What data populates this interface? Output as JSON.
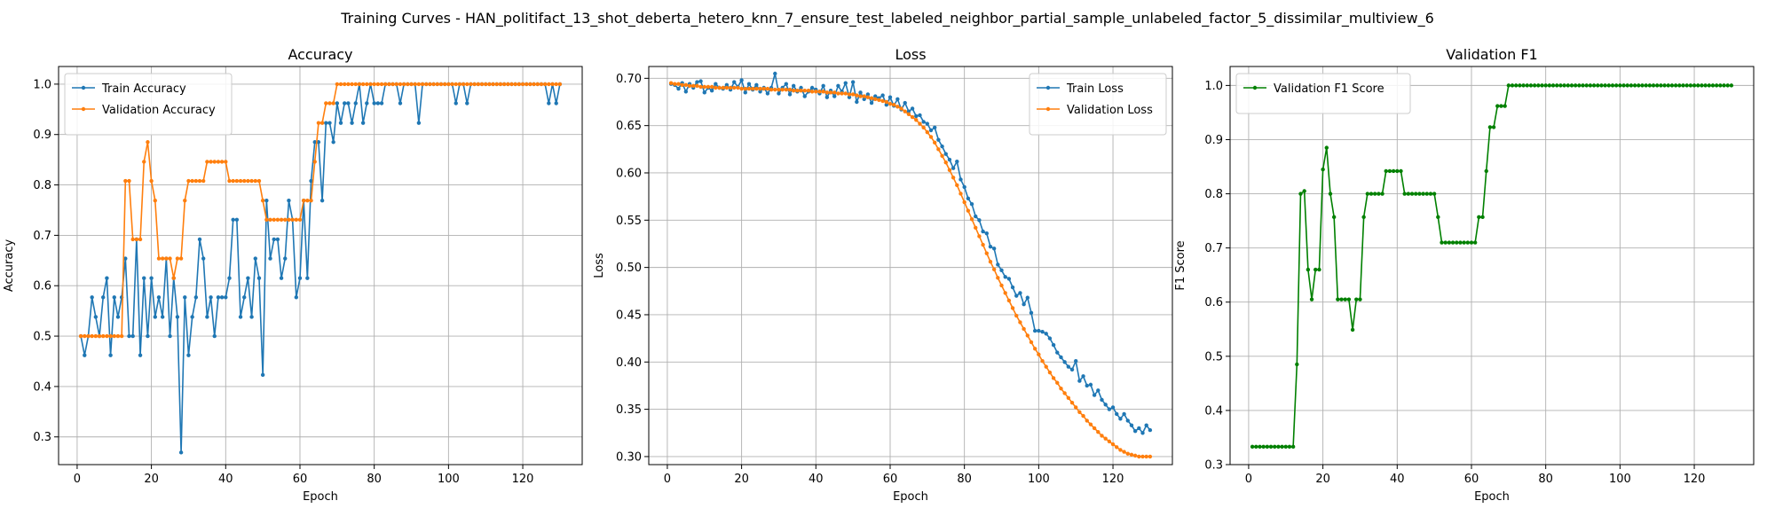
{
  "figure": {
    "title": "Training Curves - HAN_politifact_13_shot_deberta_hetero_knn_7_ensure_test_labeled_neighbor_partial_sample_unlabeled_factor_5_dissimilar_multiview_6"
  },
  "colors": {
    "blue": "#1f77b4",
    "orange": "#ff7f0e",
    "green": "#008000",
    "grid": "#b0b0b0"
  },
  "chart_data": [
    {
      "type": "line",
      "title": "Accuracy",
      "xlabel": "Epoch",
      "ylabel": "Accuracy",
      "xlim": [
        -5,
        136
      ],
      "ylim": [
        0.245,
        1.035
      ],
      "xticks": [
        0,
        20,
        40,
        60,
        80,
        100,
        120
      ],
      "yticks": [
        0.3,
        0.4,
        0.5,
        0.6,
        0.7,
        0.8,
        0.9,
        1.0
      ],
      "ytick_labels": [
        "0.3",
        "0.4",
        "0.5",
        "0.6",
        "0.7",
        "0.8",
        "0.9",
        "1.0"
      ],
      "grid": true,
      "legend": "upper-left",
      "x": {
        "start": 1,
        "end": 130
      },
      "series": [
        {
          "name": "Train Accuracy",
          "color": "#1f77b4",
          "values": [
            0.5,
            0.462,
            0.5,
            0.577,
            0.538,
            0.5,
            0.577,
            0.615,
            0.462,
            0.577,
            0.538,
            0.577,
            0.654,
            0.5,
            0.5,
            0.692,
            0.462,
            0.615,
            0.5,
            0.615,
            0.538,
            0.577,
            0.538,
            0.654,
            0.5,
            0.615,
            0.538,
            0.269,
            0.577,
            0.462,
            0.538,
            0.577,
            0.692,
            0.654,
            0.538,
            0.577,
            0.5,
            0.577,
            0.577,
            0.577,
            0.615,
            0.731,
            0.731,
            0.538,
            0.577,
            0.615,
            0.538,
            0.654,
            0.615,
            0.423,
            0.769,
            0.654,
            0.692,
            0.692,
            0.615,
            0.654,
            0.769,
            0.731,
            0.577,
            0.615,
            0.769,
            0.615,
            0.808,
            0.885,
            0.885,
            0.769,
            0.923,
            0.923,
            0.885,
            0.962,
            0.923,
            0.962,
            0.962,
            0.923,
            0.962,
            1.0,
            0.923,
            0.962,
            1.0,
            0.962,
            0.962,
            0.962,
            1.0,
            1.0,
            1.0,
            1.0,
            0.962,
            1.0,
            1.0,
            1.0,
            1.0,
            0.923,
            1.0,
            1.0,
            1.0,
            1.0,
            1.0,
            1.0,
            1.0,
            1.0,
            1.0,
            0.962,
            1.0,
            1.0,
            0.962,
            1.0,
            1.0,
            1.0,
            1.0,
            1.0,
            1.0,
            1.0,
            1.0,
            1.0,
            1.0,
            1.0,
            1.0,
            1.0,
            1.0,
            1.0,
            1.0,
            1.0,
            1.0,
            1.0,
            1.0,
            1.0,
            0.962,
            1.0,
            0.962,
            1.0
          ]
        },
        {
          "name": "Validation Accuracy",
          "color": "#ff7f0e",
          "values": [
            0.5,
            0.5,
            0.5,
            0.5,
            0.5,
            0.5,
            0.5,
            0.5,
            0.5,
            0.5,
            0.5,
            0.5,
            0.808,
            0.808,
            0.692,
            0.692,
            0.692,
            0.846,
            0.885,
            0.808,
            0.769,
            0.654,
            0.654,
            0.654,
            0.654,
            0.615,
            0.654,
            0.654,
            0.769,
            0.808,
            0.808,
            0.808,
            0.808,
            0.808,
            0.846,
            0.846,
            0.846,
            0.846,
            0.846,
            0.846,
            0.808,
            0.808,
            0.808,
            0.808,
            0.808,
            0.808,
            0.808,
            0.808,
            0.808,
            0.769,
            0.731,
            0.731,
            0.731,
            0.731,
            0.731,
            0.731,
            0.731,
            0.731,
            0.731,
            0.731,
            0.769,
            0.769,
            0.769,
            0.846,
            0.923,
            0.923,
            0.962,
            0.962,
            0.962,
            1.0,
            1.0,
            1.0,
            1.0,
            1.0,
            1.0,
            1.0,
            1.0,
            1.0,
            1.0,
            1.0,
            1.0,
            1.0,
            1.0,
            1.0,
            1.0,
            1.0,
            1.0,
            1.0,
            1.0,
            1.0,
            1.0,
            1.0,
            1.0,
            1.0,
            1.0,
            1.0,
            1.0,
            1.0,
            1.0,
            1.0,
            1.0,
            1.0,
            1.0,
            1.0,
            1.0,
            1.0,
            1.0,
            1.0,
            1.0,
            1.0,
            1.0,
            1.0,
            1.0,
            1.0,
            1.0,
            1.0,
            1.0,
            1.0,
            1.0,
            1.0,
            1.0,
            1.0,
            1.0,
            1.0,
            1.0,
            1.0,
            1.0,
            1.0,
            1.0,
            1.0
          ]
        }
      ]
    },
    {
      "type": "line",
      "title": "Loss",
      "xlabel": "Epoch",
      "ylabel": "Loss",
      "xlim": [
        -5,
        136
      ],
      "ylim": [
        0.2915,
        0.7125
      ],
      "xticks": [
        0,
        20,
        40,
        60,
        80,
        100,
        120
      ],
      "yticks": [
        0.3,
        0.35,
        0.4,
        0.45,
        0.5,
        0.55,
        0.6,
        0.65,
        0.7
      ],
      "ytick_labels": [
        "0.30",
        "0.35",
        "0.40",
        "0.45",
        "0.50",
        "0.55",
        "0.60",
        "0.65",
        "0.70"
      ],
      "grid": true,
      "legend": "upper-right",
      "x": {
        "start": 1,
        "end": 130
      },
      "series": [
        {
          "name": "Train Loss",
          "color": "#1f77b4",
          "values": [
            0.694,
            0.693,
            0.689,
            0.695,
            0.686,
            0.694,
            0.69,
            0.696,
            0.697,
            0.685,
            0.69,
            0.687,
            0.694,
            0.69,
            0.689,
            0.693,
            0.688,
            0.696,
            0.691,
            0.698,
            0.685,
            0.694,
            0.688,
            0.693,
            0.686,
            0.69,
            0.684,
            0.69,
            0.705,
            0.684,
            0.69,
            0.694,
            0.683,
            0.692,
            0.686,
            0.69,
            0.681,
            0.686,
            0.69,
            0.688,
            0.684,
            0.692,
            0.68,
            0.687,
            0.681,
            0.692,
            0.686,
            0.695,
            0.68,
            0.696,
            0.675,
            0.685,
            0.678,
            0.683,
            0.674,
            0.681,
            0.679,
            0.682,
            0.672,
            0.68,
            0.671,
            0.678,
            0.667,
            0.674,
            0.665,
            0.668,
            0.66,
            0.661,
            0.654,
            0.652,
            0.645,
            0.648,
            0.635,
            0.628,
            0.62,
            0.614,
            0.605,
            0.612,
            0.593,
            0.585,
            0.573,
            0.567,
            0.554,
            0.55,
            0.538,
            0.536,
            0.522,
            0.52,
            0.503,
            0.497,
            0.49,
            0.488,
            0.479,
            0.47,
            0.473,
            0.461,
            0.468,
            0.452,
            0.433,
            0.433,
            0.432,
            0.43,
            0.425,
            0.418,
            0.41,
            0.405,
            0.4,
            0.395,
            0.392,
            0.401,
            0.38,
            0.385,
            0.375,
            0.376,
            0.365,
            0.37,
            0.36,
            0.355,
            0.35,
            0.352,
            0.345,
            0.34,
            0.345,
            0.338,
            0.333,
            0.327,
            0.33,
            0.325,
            0.333,
            0.328
          ]
        },
        {
          "name": "Validation Loss",
          "color": "#ff7f0e",
          "values": [
            0.695,
            0.694,
            0.694,
            0.693,
            0.693,
            0.692,
            0.692,
            0.692,
            0.691,
            0.691,
            0.691,
            0.691,
            0.69,
            0.69,
            0.69,
            0.69,
            0.69,
            0.69,
            0.69,
            0.689,
            0.689,
            0.689,
            0.689,
            0.689,
            0.689,
            0.689,
            0.689,
            0.688,
            0.688,
            0.688,
            0.688,
            0.688,
            0.688,
            0.687,
            0.687,
            0.687,
            0.687,
            0.687,
            0.686,
            0.686,
            0.686,
            0.686,
            0.685,
            0.685,
            0.685,
            0.684,
            0.684,
            0.684,
            0.683,
            0.683,
            0.682,
            0.681,
            0.681,
            0.68,
            0.679,
            0.678,
            0.677,
            0.676,
            0.675,
            0.673,
            0.672,
            0.67,
            0.668,
            0.665,
            0.662,
            0.659,
            0.656,
            0.652,
            0.648,
            0.643,
            0.638,
            0.632,
            0.625,
            0.618,
            0.611,
            0.603,
            0.595,
            0.587,
            0.578,
            0.569,
            0.56,
            0.551,
            0.542,
            0.533,
            0.524,
            0.515,
            0.506,
            0.498,
            0.489,
            0.481,
            0.473,
            0.465,
            0.457,
            0.449,
            0.442,
            0.435,
            0.428,
            0.421,
            0.414,
            0.408,
            0.401,
            0.395,
            0.389,
            0.383,
            0.378,
            0.372,
            0.367,
            0.362,
            0.357,
            0.352,
            0.347,
            0.343,
            0.338,
            0.334,
            0.33,
            0.326,
            0.322,
            0.319,
            0.316,
            0.313,
            0.31,
            0.307,
            0.305,
            0.303,
            0.302,
            0.301,
            0.3,
            0.3,
            0.3,
            0.3
          ]
        }
      ]
    },
    {
      "type": "line",
      "title": "Validation F1",
      "xlabel": "Epoch",
      "ylabel": "F1 Score",
      "xlim": [
        -5,
        136
      ],
      "ylim": [
        0.3,
        1.035
      ],
      "xticks": [
        0,
        20,
        40,
        60,
        80,
        100,
        120
      ],
      "yticks": [
        0.3,
        0.4,
        0.5,
        0.6,
        0.7,
        0.8,
        0.9,
        1.0
      ],
      "ytick_labels": [
        "0.3",
        "0.4",
        "0.5",
        "0.6",
        "0.7",
        "0.8",
        "0.9",
        "1.0"
      ],
      "grid": true,
      "legend": "upper-left",
      "x": {
        "start": 1,
        "end": 130
      },
      "series": [
        {
          "name": "Validation F1 Score",
          "color": "#008000",
          "values": [
            0.333,
            0.333,
            0.333,
            0.333,
            0.333,
            0.333,
            0.333,
            0.333,
            0.333,
            0.333,
            0.333,
            0.333,
            0.485,
            0.8,
            0.805,
            0.66,
            0.605,
            0.66,
            0.66,
            0.845,
            0.885,
            0.8,
            0.757,
            0.605,
            0.605,
            0.605,
            0.605,
            0.549,
            0.605,
            0.605,
            0.757,
            0.8,
            0.8,
            0.8,
            0.8,
            0.8,
            0.842,
            0.842,
            0.842,
            0.842,
            0.842,
            0.8,
            0.8,
            0.8,
            0.8,
            0.8,
            0.8,
            0.8,
            0.8,
            0.8,
            0.757,
            0.71,
            0.71,
            0.71,
            0.71,
            0.71,
            0.71,
            0.71,
            0.71,
            0.71,
            0.71,
            0.757,
            0.757,
            0.842,
            0.923,
            0.923,
            0.962,
            0.962,
            0.962,
            1.0,
            1.0,
            1.0,
            1.0,
            1.0,
            1.0,
            1.0,
            1.0,
            1.0,
            1.0,
            1.0,
            1.0,
            1.0,
            1.0,
            1.0,
            1.0,
            1.0,
            1.0,
            1.0,
            1.0,
            1.0,
            1.0,
            1.0,
            1.0,
            1.0,
            1.0,
            1.0,
            1.0,
            1.0,
            1.0,
            1.0,
            1.0,
            1.0,
            1.0,
            1.0,
            1.0,
            1.0,
            1.0,
            1.0,
            1.0,
            1.0,
            1.0,
            1.0,
            1.0,
            1.0,
            1.0,
            1.0,
            1.0,
            1.0,
            1.0,
            1.0,
            1.0,
            1.0,
            1.0,
            1.0,
            1.0,
            1.0,
            1.0,
            1.0,
            1.0,
            1.0
          ]
        }
      ]
    }
  ]
}
